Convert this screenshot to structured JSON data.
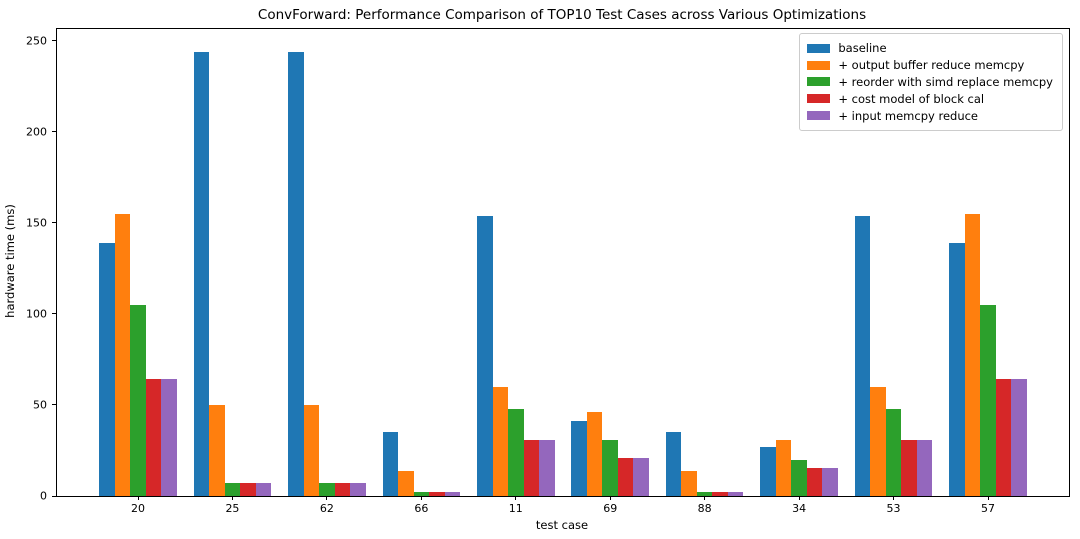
{
  "chart_data": {
    "type": "bar",
    "title": "ConvForward: Performance Comparison of TOP10 Test Cases across Various Optimizations",
    "xlabel": "test case",
    "ylabel": "hardware time (ms)",
    "categories": [
      "20",
      "25",
      "62",
      "66",
      "11",
      "69",
      "88",
      "34",
      "53",
      "57"
    ],
    "series": [
      {
        "name": "baseline",
        "color": "#1f77b4",
        "values": [
          139,
          244,
          244,
          35,
          154,
          41,
          35,
          27,
          154,
          139
        ]
      },
      {
        "name": "+ output buffer reduce memcpy",
        "color": "#ff7f0e",
        "values": [
          155,
          50,
          50,
          14,
          60,
          46,
          14,
          31,
          60,
          155
        ]
      },
      {
        "name": "+ reorder with simd replace memcpy",
        "color": "#2ca02c",
        "values": [
          105,
          7,
          7,
          2,
          48,
          31,
          2,
          20,
          48,
          105
        ]
      },
      {
        "name": "+ cost model of block cal",
        "color": "#d62728",
        "values": [
          64,
          7,
          7,
          2,
          31,
          21,
          2,
          15.5,
          31,
          64
        ]
      },
      {
        "name": "+ input memcpy reduce",
        "color": "#9467bd",
        "values": [
          64,
          7,
          7,
          2,
          31,
          21,
          2,
          15.5,
          31,
          64
        ]
      }
    ],
    "yticks": [
      0,
      50,
      100,
      150,
      200,
      250
    ],
    "ylim": [
      0,
      256.4
    ],
    "grid": false,
    "legend_position": "upper right"
  }
}
